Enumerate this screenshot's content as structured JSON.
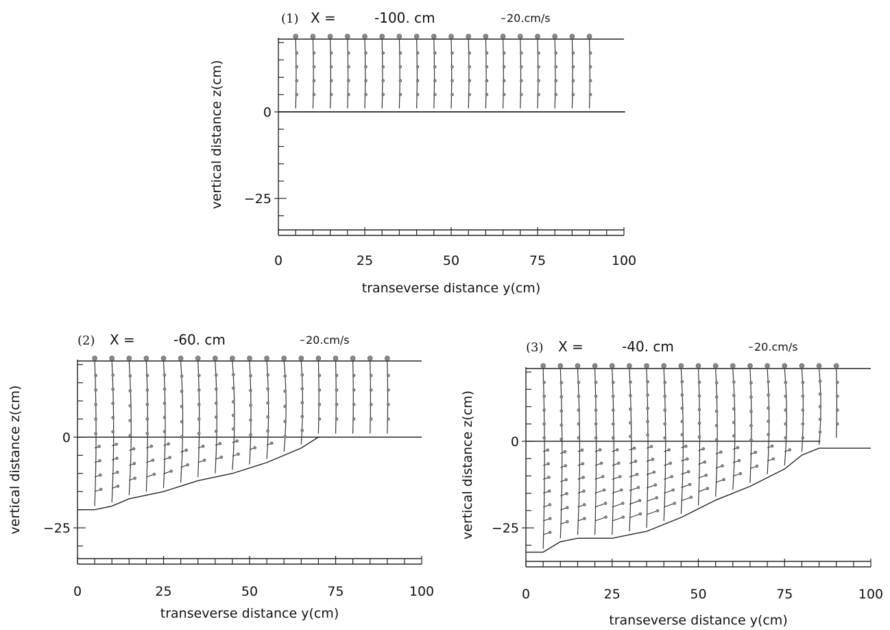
{
  "chart_data": [
    {
      "type": "vector-profile",
      "panel_label": "(1)",
      "title_prefix": "X =",
      "title_value": "-100. cm",
      "scale_label": "20.cm/s",
      "xlabel": "transeverse distance y(cm)",
      "ylabel": "vertical distance z(cm)",
      "xlim": [
        0,
        100
      ],
      "ylim": [
        -35,
        21
      ],
      "x_ticks": [
        0,
        25,
        50,
        75,
        100
      ],
      "x_tick_labels": [
        "0",
        "25",
        "50",
        "75",
        "100"
      ],
      "y_ticks": [
        0,
        -25
      ],
      "y_tick_labels": [
        "0",
        "−25"
      ],
      "water_surface": 21,
      "main_channel_extent": 100,
      "profile_y": [
        5,
        10,
        15,
        20,
        25,
        30,
        35,
        40,
        45,
        50,
        55,
        60,
        65,
        70,
        75,
        80,
        85,
        90
      ],
      "bed": [
        [
          0,
          0
        ],
        [
          100,
          0
        ]
      ]
    },
    {
      "type": "vector-profile",
      "panel_label": "(2)",
      "title_prefix": "X =",
      "title_value": "-60. cm",
      "scale_label": "20.cm/s",
      "xlabel": "transeverse distance y(cm)",
      "ylabel": "vertical distance z(cm)",
      "xlim": [
        0,
        100
      ],
      "ylim": [
        -35,
        21
      ],
      "x_ticks": [
        0,
        25,
        50,
        75,
        100
      ],
      "x_tick_labels": [
        "0",
        "25",
        "50",
        "75",
        "100"
      ],
      "y_ticks": [
        0,
        -25
      ],
      "y_tick_labels": [
        "0",
        "−25"
      ],
      "water_surface": 21,
      "main_channel_extent": 70,
      "profile_y": [
        5,
        10,
        15,
        20,
        25,
        30,
        35,
        40,
        45,
        50,
        55,
        60,
        65,
        70,
        75,
        80,
        85,
        90
      ],
      "bed": [
        [
          0,
          -20
        ],
        [
          5,
          -20
        ],
        [
          10,
          -19
        ],
        [
          15,
          -17
        ],
        [
          25,
          -15
        ],
        [
          35,
          -12
        ],
        [
          45,
          -10
        ],
        [
          55,
          -7
        ],
        [
          65,
          -3
        ],
        [
          70,
          0
        ],
        [
          100,
          0
        ]
      ]
    },
    {
      "type": "vector-profile",
      "panel_label": "(3)",
      "title_prefix": "X =",
      "title_value": "-40. cm",
      "scale_label": "20.cm/s",
      "xlabel": "transeverse distance y(cm)",
      "ylabel": "vertical distance z(cm)",
      "xlim": [
        0,
        100
      ],
      "ylim": [
        -35,
        21
      ],
      "x_ticks": [
        0,
        25,
        50,
        75,
        100
      ],
      "x_tick_labels": [
        "0",
        "25",
        "50",
        "75",
        "100"
      ],
      "y_ticks": [
        0,
        -25
      ],
      "y_tick_labels": [
        "0",
        "−25"
      ],
      "water_surface": 21,
      "main_channel_extent": 85,
      "profile_y": [
        5,
        10,
        15,
        20,
        25,
        30,
        35,
        40,
        45,
        50,
        55,
        60,
        65,
        70,
        75,
        80,
        85,
        90
      ],
      "bed": [
        [
          0,
          -32
        ],
        [
          5,
          -32
        ],
        [
          10,
          -29
        ],
        [
          15,
          -28
        ],
        [
          25,
          -28
        ],
        [
          35,
          -26
        ],
        [
          45,
          -22
        ],
        [
          55,
          -17
        ],
        [
          65,
          -13
        ],
        [
          75,
          -8
        ],
        [
          80,
          -4
        ],
        [
          85,
          -2
        ],
        [
          100,
          -2
        ]
      ]
    }
  ]
}
